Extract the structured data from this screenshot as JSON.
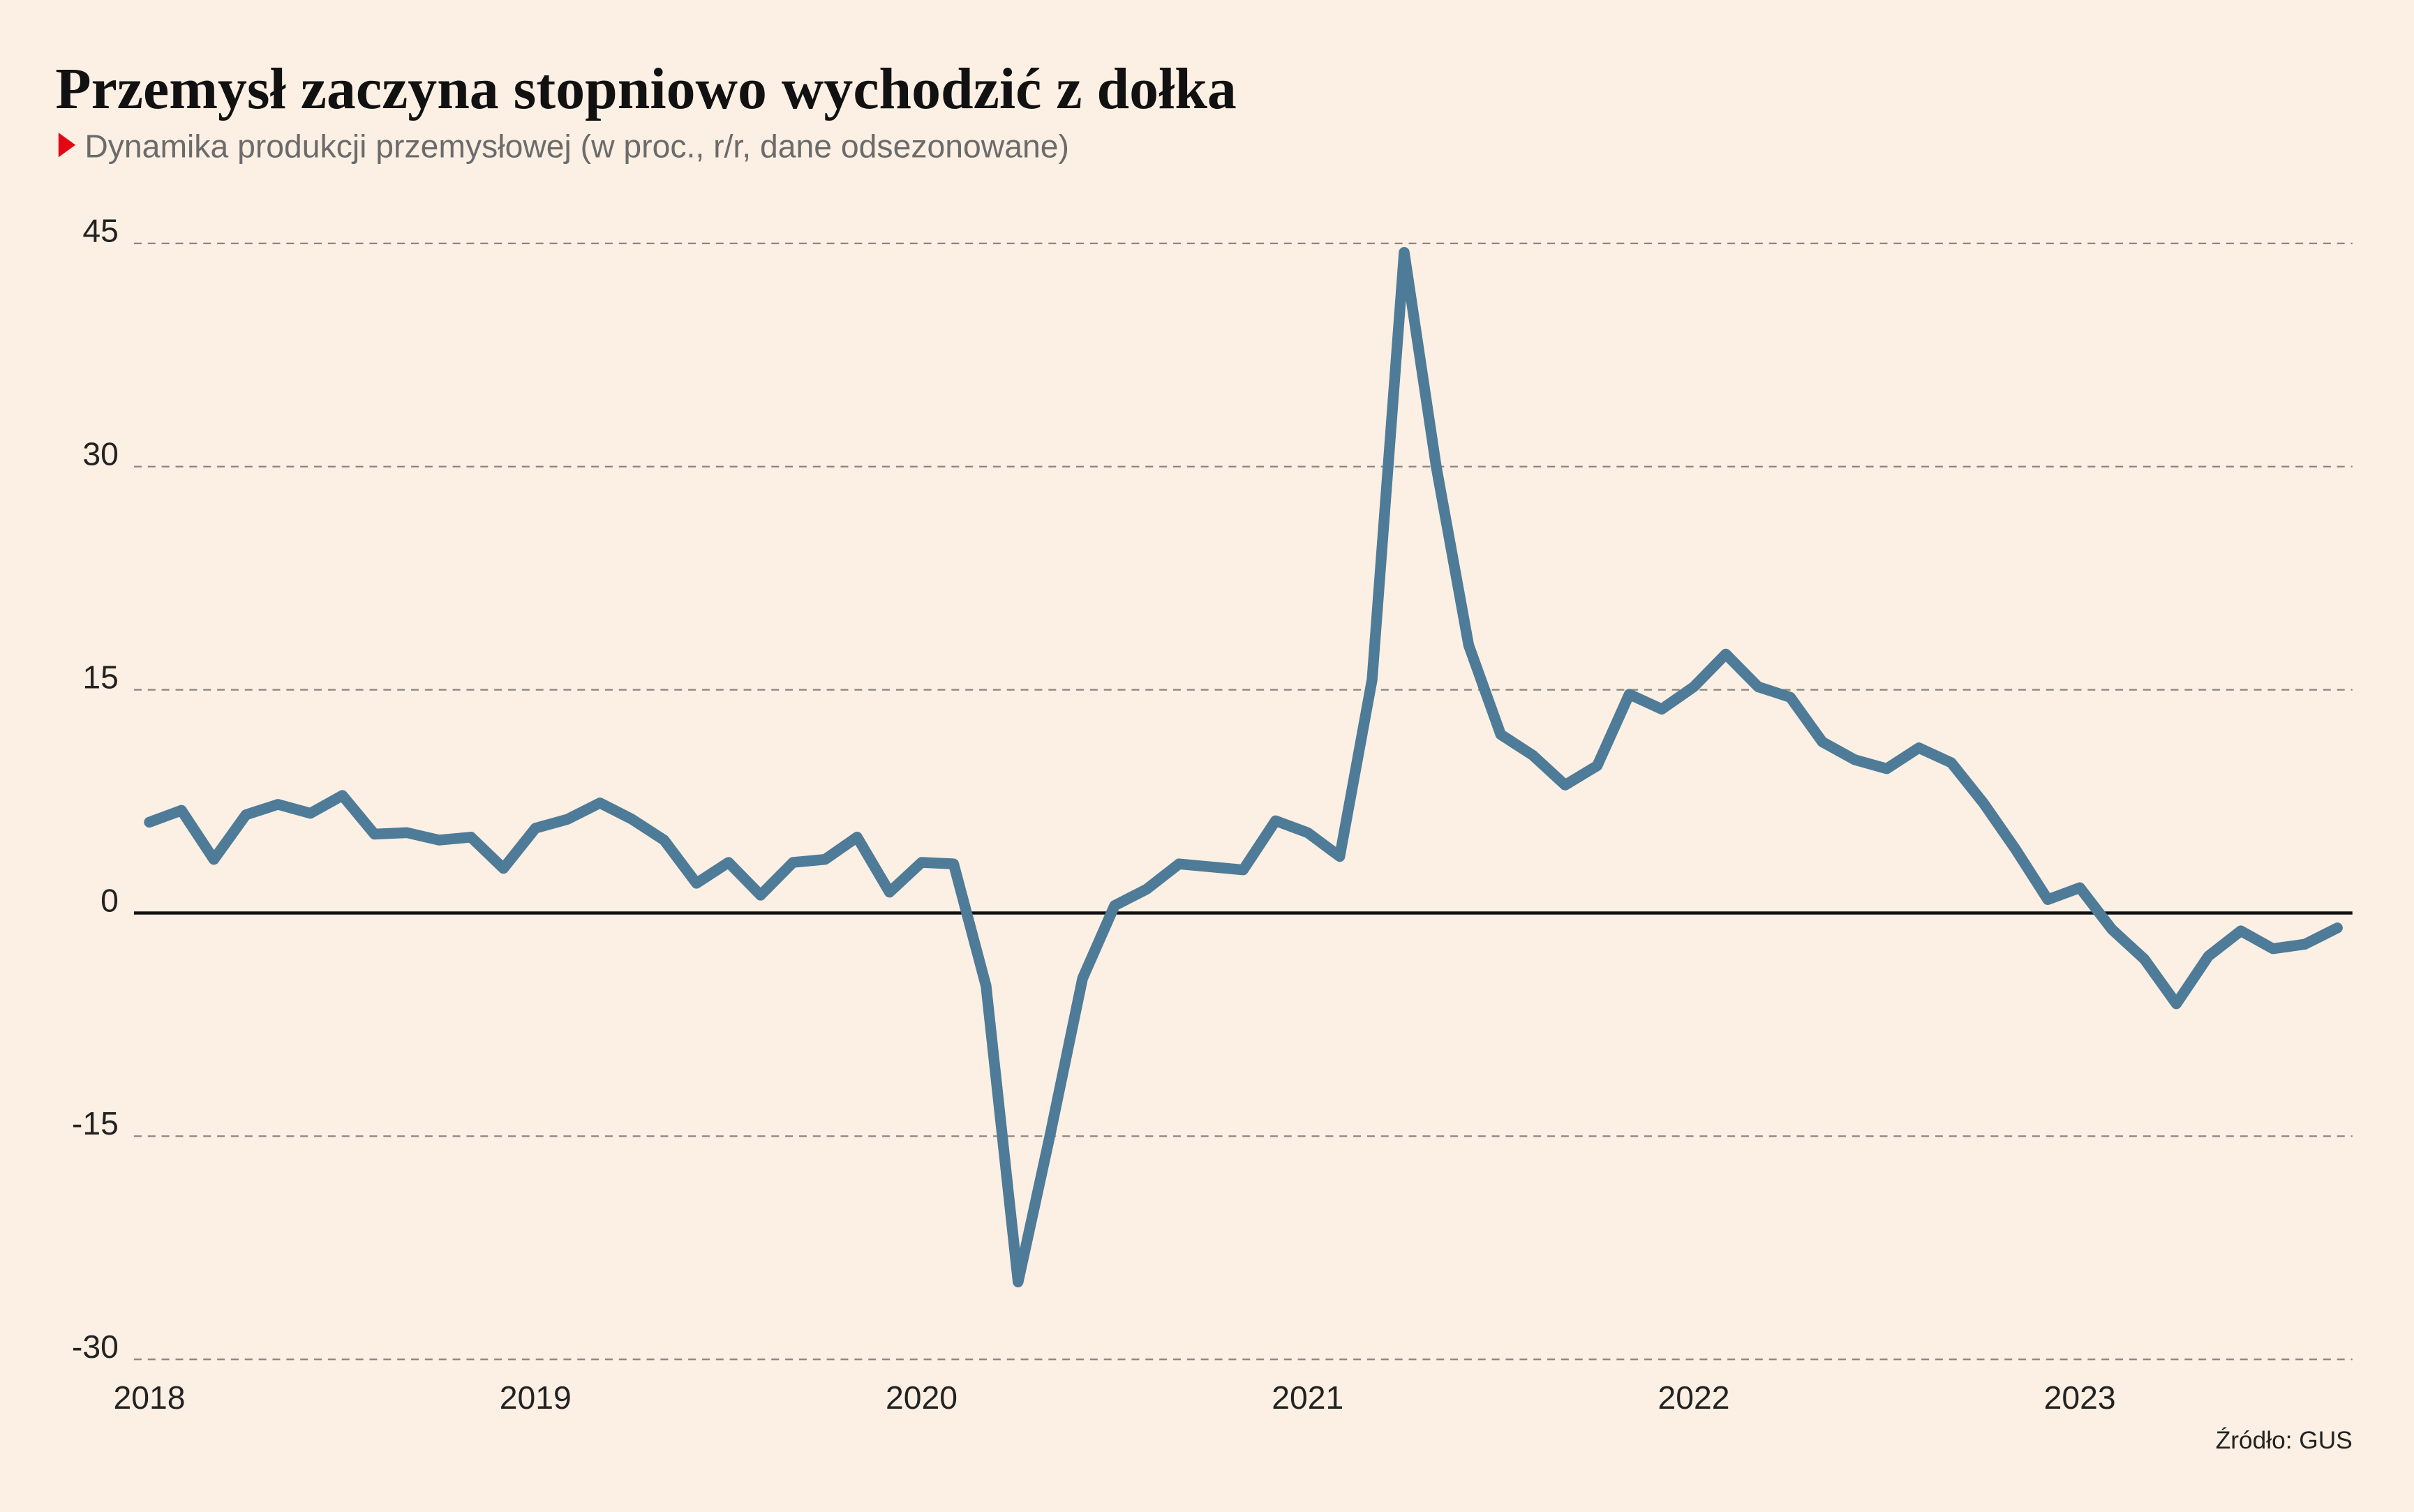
{
  "chart_data": {
    "type": "line",
    "title": "Przemysł zaczyna stopniowo wychodzić z dołka",
    "subtitle": "Dynamika produkcji przemysłowej (w proc., r/r, dane odsezonowane)",
    "source": "Źródło: GUS",
    "x": [
      2018,
      2018.083,
      2018.167,
      2018.25,
      2018.333,
      2018.417,
      2018.5,
      2018.583,
      2018.667,
      2018.75,
      2018.833,
      2018.917,
      2019,
      2019.083,
      2019.167,
      2019.25,
      2019.333,
      2019.417,
      2019.5,
      2019.583,
      2019.667,
      2019.75,
      2019.833,
      2019.917,
      2020,
      2020.083,
      2020.167,
      2020.25,
      2020.333,
      2020.417,
      2020.5,
      2020.583,
      2020.667,
      2020.75,
      2020.833,
      2020.917,
      2021,
      2021.083,
      2021.167,
      2021.25,
      2021.333,
      2021.417,
      2021.5,
      2021.583,
      2021.667,
      2021.75,
      2021.833,
      2021.917,
      2022,
      2022.083,
      2022.167,
      2022.25,
      2022.333,
      2022.417,
      2022.5,
      2022.583,
      2022.667,
      2022.75,
      2022.833,
      2022.917,
      2023,
      2023.083,
      2023.167,
      2023.25,
      2023.333,
      2023.417,
      2023.5,
      2023.583,
      2023.667
    ],
    "series": [
      {
        "name": "Dynamika produkcji przemysłowej",
        "color": "#4e7b98",
        "values": [
          6.1,
          6.9,
          3.6,
          6.6,
          7.3,
          6.7,
          7.9,
          5.3,
          5.4,
          4.9,
          5.1,
          3.0,
          5.7,
          6.3,
          7.4,
          6.3,
          4.9,
          2.0,
          3.4,
          1.2,
          3.4,
          3.6,
          5.1,
          1.4,
          3.4,
          3.3,
          -4.9,
          -24.8,
          -14.9,
          -4.4,
          0.5,
          1.6,
          3.3,
          3.1,
          2.9,
          6.2,
          5.4,
          3.8,
          15.7,
          44.4,
          30.0,
          18.0,
          12.0,
          10.6,
          8.6,
          9.9,
          14.7,
          13.7,
          15.2,
          17.4,
          15.2,
          14.5,
          11.5,
          10.3,
          9.7,
          11.1,
          10.1,
          7.4,
          4.3,
          0.9,
          1.7,
          -1.1,
          -3.1,
          -6.1,
          -2.9,
          -1.2,
          -2.4,
          -2.1,
          -1.0
        ]
      }
    ],
    "xlim": [
      2017.96,
      2023.706
    ],
    "xticks": [
      2018,
      2019,
      2020,
      2021,
      2022,
      2023
    ],
    "ylim": [
      -30,
      45
    ],
    "yticks": [
      -30,
      -15,
      0,
      15,
      30,
      45
    ],
    "grid": true
  }
}
